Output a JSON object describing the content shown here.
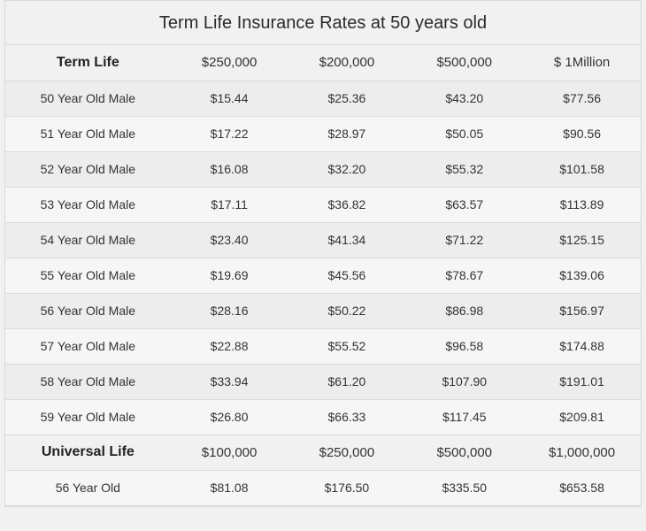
{
  "title": "Term Life Insurance Rates at 50 years old",
  "styling": {
    "background_color": "#f1f1f1",
    "border_color": "#d8d8d8",
    "row_alt_bg": "#ededed",
    "row_bg": "#f6f6f6",
    "text_color": "#333",
    "title_fontsize": 20,
    "header_fontsize": 15,
    "body_fontsize": 14,
    "font_family": "Arial"
  },
  "sections": [
    {
      "label": "Term Life",
      "columns": [
        "$250,000",
        "$200,000",
        "$500,000",
        "$ 1Million"
      ],
      "rows": [
        {
          "label": "50 Year Old Male",
          "values": [
            "$15.44",
            "$25.36",
            "$43.20",
            "$77.56"
          ]
        },
        {
          "label": "51 Year Old Male",
          "values": [
            "$17.22",
            "$28.97",
            "$50.05",
            "$90.56"
          ]
        },
        {
          "label": "52 Year Old Male",
          "values": [
            "$16.08",
            "$32.20",
            "$55.32",
            "$101.58"
          ]
        },
        {
          "label": "53 Year Old Male",
          "values": [
            "$17.11",
            "$36.82",
            "$63.57",
            "$113.89"
          ]
        },
        {
          "label": "54 Year Old Male",
          "values": [
            "$23.40",
            "$41.34",
            "$71.22",
            "$125.15"
          ]
        },
        {
          "label": "55 Year Old Male",
          "values": [
            "$19.69",
            "$45.56",
            "$78.67",
            "$139.06"
          ]
        },
        {
          "label": "56 Year Old Male",
          "values": [
            "$28.16",
            "$50.22",
            "$86.98",
            "$156.97"
          ]
        },
        {
          "label": "57 Year Old Male",
          "values": [
            "$22.88",
            "$55.52",
            "$96.58",
            "$174.88"
          ]
        },
        {
          "label": "58 Year Old Male",
          "values": [
            "$33.94",
            "$61.20",
            "$107.90",
            "$191.01"
          ]
        },
        {
          "label": "59 Year Old Male",
          "values": [
            "$26.80",
            "$66.33",
            "$117.45",
            "$209.81"
          ]
        }
      ]
    },
    {
      "label": "Universal Life",
      "columns": [
        "$100,000",
        "$250,000",
        "$500,000",
        "$1,000,000"
      ],
      "rows": [
        {
          "label": "56 Year Old",
          "values": [
            "$81.08",
            "$176.50",
            "$335.50",
            "$653.58"
          ]
        }
      ]
    }
  ]
}
